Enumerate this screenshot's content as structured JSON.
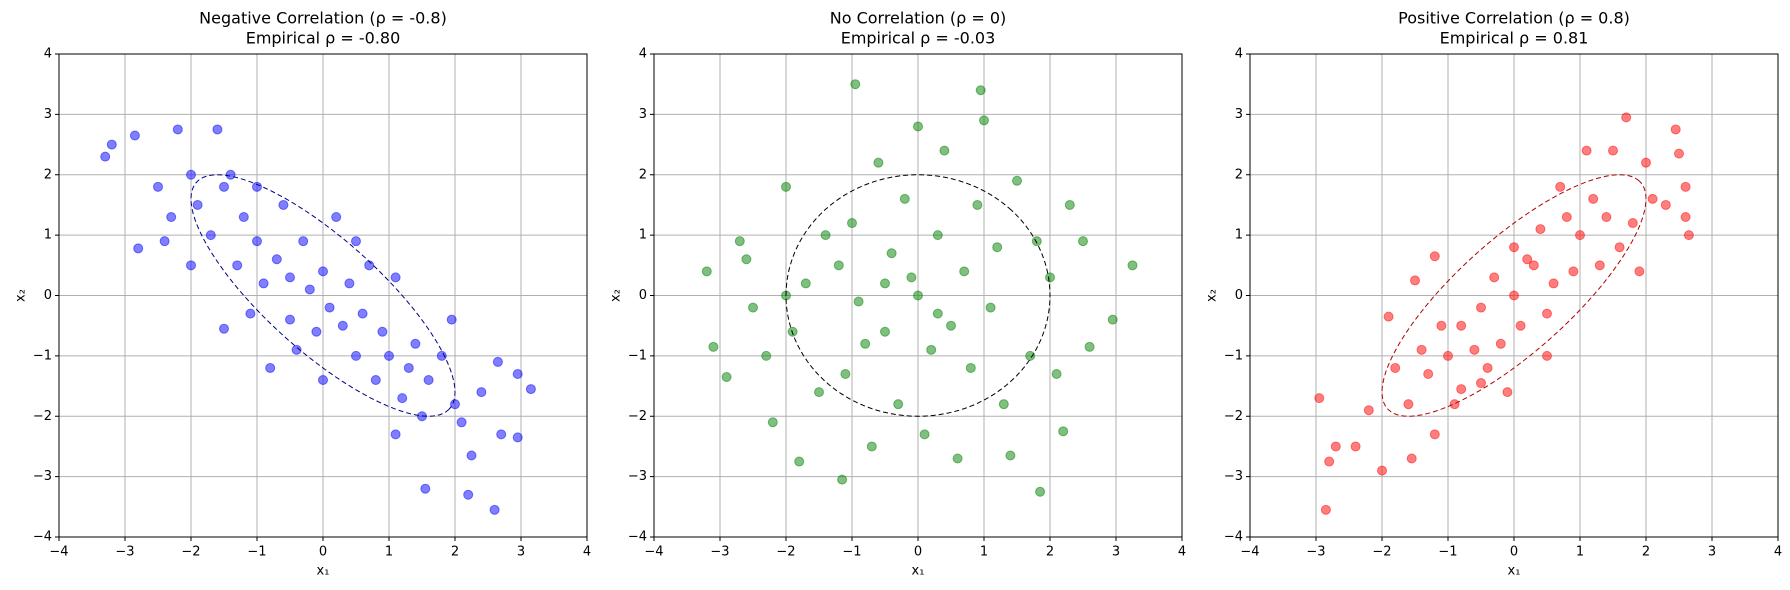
{
  "chart_data": [
    {
      "type": "scatter",
      "title": "Negative Correlation (ρ = -0.8)",
      "subtitle": "Empirical ρ = -0.80",
      "xlabel": "x₁",
      "ylabel": "x₂",
      "color": "#0000ff",
      "grid": true,
      "xlim": [
        -4,
        4
      ],
      "ylim": [
        -4,
        4
      ],
      "xticks": [
        {
          "value": -4,
          "label": "−4"
        },
        {
          "value": -3,
          "label": "−3"
        },
        {
          "value": -2,
          "label": "−2"
        },
        {
          "value": -1,
          "label": "−1"
        },
        0,
        1,
        2,
        3,
        4
      ],
      "yticks": [
        {
          "value": -4,
          "label": "−4"
        },
        {
          "value": -3,
          "label": "−3"
        },
        {
          "value": -2,
          "label": "−2"
        },
        {
          "value": -1,
          "label": "−1"
        },
        0,
        1,
        2,
        3,
        4
      ],
      "ellipse": {
        "rho": -0.8,
        "radius": 2
      },
      "x": [
        -3.3,
        -3.2,
        -2.85,
        -2.8,
        -2.2,
        -1.6,
        -2.5,
        -2.3,
        -2.0,
        -1.9,
        -1.7,
        -1.5,
        -1.4,
        -1.3,
        -1.2,
        -1.0,
        -1.0,
        -0.9,
        -0.8,
        -0.7,
        -0.6,
        -0.5,
        -0.5,
        -0.3,
        -0.2,
        -0.1,
        0.0,
        0.1,
        0.2,
        0.3,
        0.4,
        0.5,
        0.6,
        0.7,
        0.8,
        0.9,
        1.0,
        1.1,
        1.2,
        1.3,
        1.4,
        1.5,
        1.6,
        1.8,
        1.95,
        2.0,
        2.1,
        2.2,
        2.25,
        2.6,
        1.55,
        3.15,
        2.95,
        2.95,
        2.7,
        2.65,
        2.4,
        -2.0,
        -1.5,
        -1.1,
        0.0,
        -0.4,
        1.1,
        -2.4,
        0.5
      ],
      "y": [
        2.3,
        2.5,
        2.65,
        0.78,
        2.75,
        2.75,
        1.8,
        1.3,
        2.0,
        1.5,
        1.0,
        1.8,
        2.0,
        0.5,
        1.3,
        0.9,
        1.8,
        0.2,
        -1.2,
        0.6,
        1.5,
        0.3,
        -0.4,
        0.9,
        0.1,
        -0.6,
        0.4,
        -0.2,
        1.3,
        -0.5,
        0.2,
        -1.0,
        -0.3,
        0.5,
        -1.4,
        -0.6,
        -1.0,
        0.3,
        -1.7,
        -1.2,
        -0.8,
        -2.0,
        -1.4,
        -1.0,
        -0.4,
        -1.8,
        -2.1,
        -3.3,
        -2.65,
        -3.55,
        -3.2,
        -1.55,
        -1.3,
        -2.35,
        -2.3,
        -1.1,
        -1.6,
        0.5,
        -0.55,
        -0.3,
        -1.4,
        -0.9,
        -2.3,
        0.9,
        0.9
      ]
    },
    {
      "type": "scatter",
      "title": "No Correlation (ρ = 0)",
      "subtitle": "Empirical ρ = -0.03",
      "xlabel": "x₁",
      "ylabel": "x₂",
      "color": "#008000",
      "grid": true,
      "xlim": [
        -4,
        4
      ],
      "ylim": [
        -4,
        4
      ],
      "xticks": [
        {
          "value": -4,
          "label": "−4"
        },
        {
          "value": -3,
          "label": "−3"
        },
        {
          "value": -2,
          "label": "−2"
        },
        {
          "value": -1,
          "label": "−1"
        },
        0,
        1,
        2,
        3,
        4
      ],
      "yticks": [
        {
          "value": -4,
          "label": "−4"
        },
        {
          "value": -3,
          "label": "−3"
        },
        {
          "value": -2,
          "label": "−2"
        },
        {
          "value": -1,
          "label": "−1"
        },
        0,
        1,
        2,
        3,
        4
      ],
      "ellipse": {
        "rho": 0,
        "radius": 2
      },
      "x": [
        -3.2,
        -3.1,
        -2.9,
        -2.7,
        -2.5,
        -2.2,
        -1.8,
        -1.15,
        -0.95,
        0.95,
        1.0,
        1.4,
        1.85,
        2.2,
        3.25,
        2.95,
        2.6,
        2.3,
        -2.0,
        -1.5,
        -1.0,
        -0.5,
        0.0,
        0.5,
        0.3,
        -0.8,
        1.2,
        -1.2,
        0.8,
        -0.3,
        0.4,
        -0.6,
        1.5,
        1.7,
        -1.7,
        2.0,
        -2.3,
        0.1,
        -0.2,
        0.7,
        -0.9,
        1.1,
        -1.4,
        0.2,
        -0.4,
        0.9,
        -1.1,
        1.3,
        -2.0,
        2.1,
        -0.7,
        0.6,
        2.5,
        -2.6,
        0.0,
        -1.9,
        1.8,
        -0.1,
        0.3,
        -0.5
      ],
      "y": [
        0.4,
        -0.85,
        -1.35,
        0.9,
        -0.2,
        -2.1,
        -2.75,
        -3.05,
        3.5,
        3.4,
        2.9,
        -2.65,
        -3.25,
        -2.25,
        0.5,
        -0.4,
        -0.85,
        1.5,
        1.8,
        -1.6,
        1.2,
        0.2,
        0.0,
        -0.5,
        1.0,
        -0.8,
        0.8,
        0.5,
        -1.2,
        -1.8,
        2.4,
        2.2,
        1.9,
        -1.0,
        0.2,
        0.3,
        -1.0,
        -2.3,
        1.6,
        0.4,
        -0.1,
        -0.2,
        1.0,
        -0.9,
        0.7,
        1.5,
        -1.3,
        -1.8,
        0.0,
        -1.3,
        -2.5,
        -2.7,
        0.9,
        0.6,
        2.8,
        -0.6,
        0.9,
        0.3,
        -0.3,
        -0.6
      ]
    },
    {
      "type": "scatter",
      "title": "Positive Correlation (ρ = 0.8)",
      "subtitle": "Empirical ρ = 0.81",
      "xlabel": "x₁",
      "ylabel": "x₂",
      "color": "#ff0000",
      "grid": true,
      "xlim": [
        -4,
        4
      ],
      "ylim": [
        -4,
        4
      ],
      "xticks": [
        {
          "value": -4,
          "label": "−4"
        },
        {
          "value": -3,
          "label": "−3"
        },
        {
          "value": -2,
          "label": "−2"
        },
        {
          "value": -1,
          "label": "−1"
        },
        0,
        1,
        2,
        3,
        4
      ],
      "yticks": [
        {
          "value": -4,
          "label": "−4"
        },
        {
          "value": -3,
          "label": "−3"
        },
        {
          "value": -2,
          "label": "−2"
        },
        {
          "value": -1,
          "label": "−1"
        },
        0,
        1,
        2,
        3,
        4
      ],
      "ellipse": {
        "rho": 0.8,
        "radius": 2
      },
      "x": [
        -2.85,
        -2.95,
        -2.8,
        -2.7,
        -2.0,
        -1.55,
        -1.2,
        -0.8,
        -0.5,
        -1.9,
        -1.5,
        -1.2,
        -0.8,
        -0.5,
        0.0,
        0.3,
        0.5,
        1.0,
        1.2,
        1.5,
        1.7,
        1.1,
        2.45,
        2.5,
        2.6,
        2.65,
        2.6,
        2.3,
        2.0,
        -1.0,
        -0.2,
        0.2,
        0.6,
        0.8,
        -0.3,
        -1.3,
        -1.6,
        -2.2,
        0.9,
        1.4,
        1.8,
        0.1,
        -0.6,
        0.4,
        -1.1,
        1.6,
        -0.9,
        1.3,
        -2.4,
        -1.8,
        0.7,
        2.1,
        -0.4,
        0.0,
        -1.4,
        1.9,
        -0.1,
        0.5
      ],
      "y": [
        -3.55,
        -1.7,
        -2.75,
        -2.5,
        -2.9,
        -2.7,
        -2.3,
        -1.55,
        -1.45,
        -0.35,
        0.25,
        0.65,
        -0.5,
        -0.2,
        0.0,
        0.5,
        -0.3,
        1.0,
        1.6,
        2.4,
        2.95,
        2.4,
        2.75,
        2.35,
        1.8,
        1.0,
        1.3,
        1.5,
        2.2,
        -1.0,
        -0.8,
        0.6,
        0.2,
        1.3,
        0.3,
        -1.3,
        -1.8,
        -1.9,
        0.4,
        1.3,
        1.2,
        -0.5,
        -0.9,
        1.1,
        -0.5,
        0.8,
        -1.8,
        0.5,
        -2.5,
        -1.2,
        1.8,
        1.6,
        -1.2,
        0.8,
        -0.9,
        0.4,
        -1.6,
        -1.0
      ]
    }
  ]
}
